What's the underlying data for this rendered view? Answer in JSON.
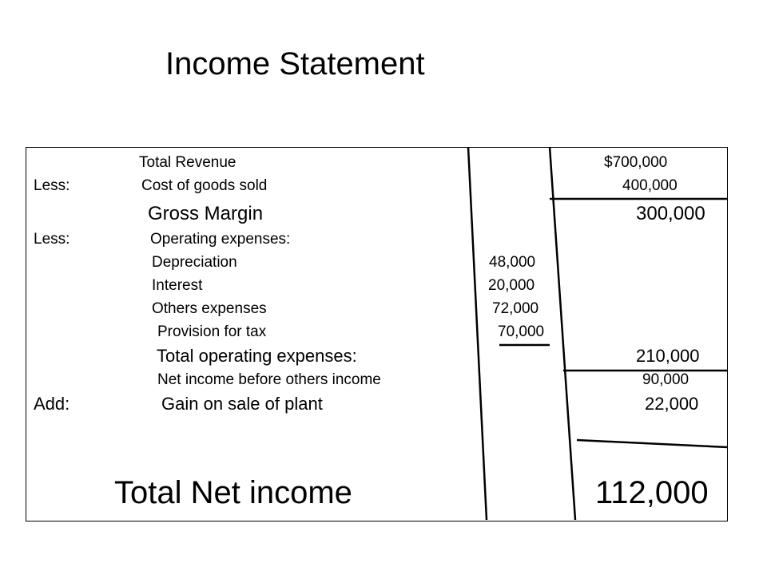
{
  "title": "Income Statement",
  "statement": {
    "total_revenue": {
      "label": "Total Revenue",
      "amount": "$700,000"
    },
    "cost_of_goods": {
      "prefix": "Less:",
      "label": "Cost of goods sold",
      "amount": "400,000"
    },
    "gross_margin": {
      "label": "Gross Margin",
      "amount": "300,000"
    },
    "operating_header": {
      "prefix": "Less:",
      "label": "Operating expenses:"
    },
    "depreciation": {
      "label": "Depreciation",
      "amount": "48,000"
    },
    "interest": {
      "label": "Interest",
      "amount": "20,000"
    },
    "other_expenses": {
      "label": "Others expenses",
      "amount": "72,000"
    },
    "provision_tax": {
      "label": "Provision for tax",
      "amount": "70,000"
    },
    "total_operating": {
      "label": "Total operating expenses:",
      "amount": "210,000"
    },
    "net_before_other": {
      "label": "Net income before others income",
      "amount": "90,000"
    },
    "gain_on_plant": {
      "prefix": "Add:",
      "label": "Gain on sale of plant",
      "amount": "22,000"
    },
    "total_net_income": {
      "label": "Total Net income",
      "amount": "112,000"
    }
  }
}
